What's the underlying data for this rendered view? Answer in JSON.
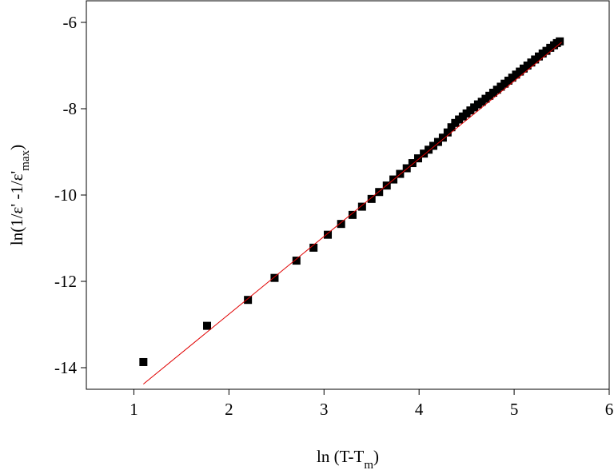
{
  "chart_data": {
    "type": "scatter",
    "x_label": {
      "main": "ln (T-T",
      "sub": "m",
      "end": ")"
    },
    "y_label": {
      "main": "ln(1/ε' -1/ε'",
      "sub": "max",
      "end": ")"
    },
    "xlim": [
      0.5,
      6
    ],
    "ylim": [
      -14.5,
      -5.5
    ],
    "xticks": [
      1,
      2,
      3,
      4,
      5,
      6
    ],
    "yticks": [
      -14,
      -12,
      -10,
      -8,
      -6
    ],
    "series": [
      {
        "mode": "markers",
        "color": "#000000",
        "x": [
          1.1,
          1.77,
          2.2,
          2.48,
          2.71,
          2.89,
          3.04,
          3.18,
          3.3,
          3.4,
          3.5,
          3.58,
          3.66,
          3.73,
          3.8,
          3.87,
          3.93,
          3.99,
          4.05,
          4.1,
          4.15,
          4.2,
          4.25,
          4.3,
          4.34,
          4.38,
          4.42,
          4.46,
          4.5,
          4.54,
          4.58,
          4.62,
          4.66,
          4.7,
          4.74,
          4.78,
          4.82,
          4.86,
          4.9,
          4.94,
          4.98,
          5.02,
          5.06,
          5.1,
          5.14,
          5.18,
          5.22,
          5.26,
          5.3,
          5.34,
          5.38,
          5.42,
          5.45,
          5.48
        ],
        "values": [
          -13.87,
          -13.03,
          -12.43,
          -11.92,
          -11.52,
          -11.22,
          -10.92,
          -10.67,
          -10.46,
          -10.27,
          -10.09,
          -9.93,
          -9.78,
          -9.64,
          -9.51,
          -9.38,
          -9.26,
          -9.15,
          -9.04,
          -8.95,
          -8.86,
          -8.77,
          -8.67,
          -8.55,
          -8.43,
          -8.33,
          -8.25,
          -8.18,
          -8.11,
          -8.04,
          -7.97,
          -7.9,
          -7.84,
          -7.77,
          -7.7,
          -7.63,
          -7.56,
          -7.49,
          -7.42,
          -7.35,
          -7.28,
          -7.21,
          -7.14,
          -7.07,
          -7.0,
          -6.93,
          -6.86,
          -6.79,
          -6.72,
          -6.66,
          -6.59,
          -6.53,
          -6.48,
          -6.44
        ]
      },
      {
        "mode": "line",
        "color": "#e00000",
        "x": [
          1.1,
          5.5
        ],
        "values": [
          -14.38,
          -6.46
        ]
      }
    ]
  }
}
